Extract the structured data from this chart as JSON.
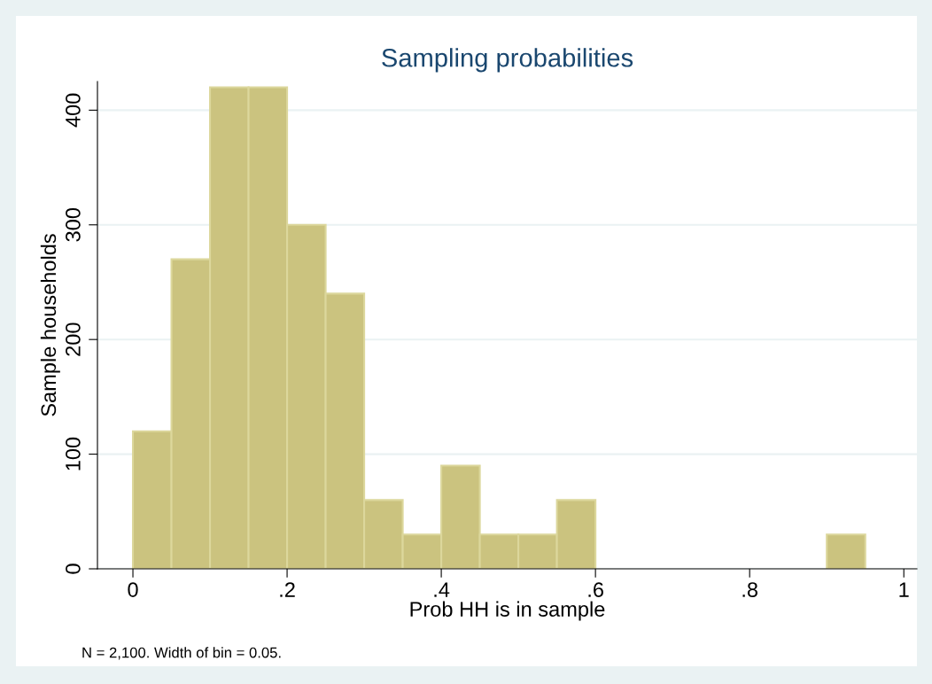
{
  "chart_data": {
    "type": "histogram",
    "title": "Sampling probabilities",
    "xlabel": "Prob HH is in sample",
    "ylabel": "Sample households",
    "bins": [
      0,
      0.05,
      0.1,
      0.15,
      0.2,
      0.25,
      0.3,
      0.35,
      0.4,
      0.45,
      0.5,
      0.55,
      0.6,
      0.65,
      0.7,
      0.75,
      0.8,
      0.85,
      0.9,
      0.95
    ],
    "values": [
      120,
      270,
      420,
      420,
      300,
      240,
      60,
      30,
      90,
      30,
      30,
      60,
      0,
      0,
      0,
      0,
      0,
      0,
      30
    ],
    "color": "#cbc37f",
    "xlim": [
      -0.046,
      1.017
    ],
    "ylim": [
      0,
      425
    ],
    "xticks": [
      0,
      {
        "value": 0.2,
        "label": ".2"
      },
      {
        "value": 0.4,
        "label": ".4"
      },
      {
        "value": 0.6,
        "label": ".6"
      },
      {
        "value": 0.8,
        "label": ".8"
      },
      1
    ],
    "yticks": [
      0,
      100,
      200,
      300,
      400
    ],
    "grid": "y",
    "annotations": [
      "N = 2,100. Width of bin = 0.05."
    ]
  }
}
